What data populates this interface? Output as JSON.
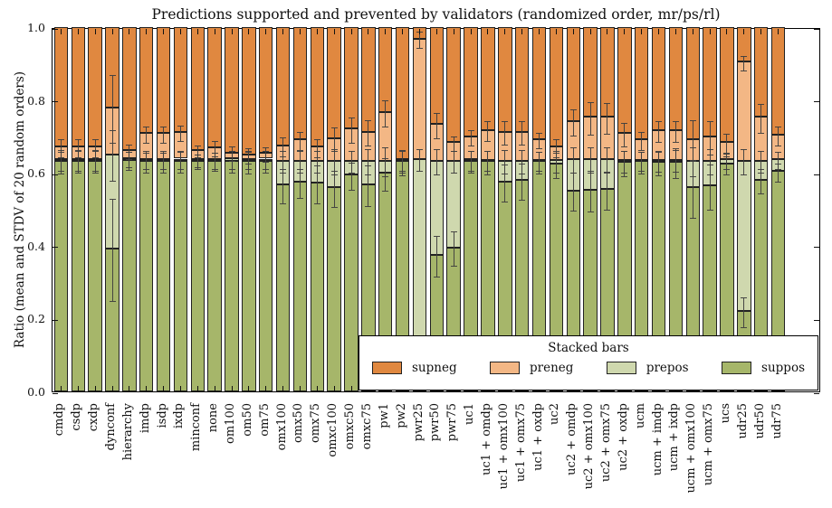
{
  "chart_data": {
    "type": "bar",
    "subtype": "stacked-vertical-with-errorbars",
    "title": "Predictions supported and prevented by validators (randomized order, mr/ps/rl)",
    "ylabel": "Ratio (mean and STDV of 20 random orders)",
    "xlabel": "",
    "ylim": [
      0.0,
      1.0
    ],
    "ytick_labels": [
      "0.0",
      "0.2",
      "0.4",
      "0.6",
      "0.8",
      "1.0"
    ],
    "grid": false,
    "legend_title": "Stacked bars",
    "legend_position": "lower right, inside plot",
    "stack_order_bottom_to_top": [
      "suppos",
      "prepos",
      "preneg",
      "supneg"
    ],
    "legend": [
      {
        "name": "supneg",
        "color": "#e08840"
      },
      {
        "name": "preneg",
        "color": "#f3b785"
      },
      {
        "name": "prepos",
        "color": "#cfd8ae"
      },
      {
        "name": "suppos",
        "color": "#a6b66a"
      }
    ],
    "colors": {
      "edge": "#222222",
      "errorbar": "#3f3f3f",
      "supneg": "#e08840",
      "preneg": "#f3b785",
      "prepos": "#cfd8ae",
      "suppos": "#a6b66a"
    },
    "categories": [
      "cmdp",
      "csdp",
      "cxdp",
      "dynconf",
      "hierarchy",
      "imdp",
      "isdp",
      "ixdp",
      "minconf",
      "none",
      "om100",
      "om50",
      "om75",
      "omx100",
      "omx50",
      "omx75",
      "omxc100",
      "omxc50",
      "omxc75",
      "pw1",
      "pw2",
      "pwr25",
      "pwr50",
      "pwr75",
      "uc1",
      "uc1 + omdp",
      "uc1 + omx100",
      "uc1 + omx75",
      "uc1 + oxdp",
      "uc2",
      "uc2 + omdp",
      "uc2 + omx100",
      "uc2 + omx75",
      "uc2 + oxdp",
      "ucm",
      "ucm + imdp",
      "ucm + ixdp",
      "ucm + omx100",
      "ucm + omx75",
      "ucs",
      "udr25",
      "udr50",
      "udr75"
    ],
    "series": {
      "suppos": [
        0.632,
        0.633,
        0.633,
        0.392,
        0.636,
        0.632,
        0.632,
        0.633,
        0.634,
        0.633,
        0.633,
        0.632,
        0.633,
        0.568,
        0.575,
        0.572,
        0.56,
        0.595,
        0.568,
        0.6,
        0.632,
        0.1,
        0.375,
        0.395,
        0.633,
        0.632,
        0.576,
        0.58,
        0.632,
        0.625,
        0.552,
        0.553,
        0.555,
        0.63,
        0.632,
        0.63,
        0.63,
        0.56,
        0.565,
        0.625,
        0.221,
        0.58,
        0.605
      ],
      "prepos": [
        0.006,
        0.005,
        0.005,
        0.259,
        0.004,
        0.006,
        0.006,
        0.006,
        0.003,
        0.004,
        0.007,
        0.006,
        0.006,
        0.066,
        0.059,
        0.062,
        0.074,
        0.039,
        0.066,
        0.034,
        0.002,
        0.538,
        0.259,
        0.239,
        0.004,
        0.004,
        0.058,
        0.054,
        0.004,
        0.01,
        0.086,
        0.085,
        0.083,
        0.005,
        0.004,
        0.005,
        0.006,
        0.074,
        0.069,
        0.012,
        0.413,
        0.054,
        0.033
      ],
      "preneg": [
        0.034,
        0.034,
        0.034,
        0.128,
        0.022,
        0.071,
        0.071,
        0.073,
        0.025,
        0.033,
        0.016,
        0.012,
        0.015,
        0.041,
        0.058,
        0.038,
        0.062,
        0.087,
        0.079,
        0.133,
        0.004,
        0.331,
        0.1,
        0.05,
        0.063,
        0.082,
        0.079,
        0.079,
        0.056,
        0.037,
        0.104,
        0.116,
        0.116,
        0.074,
        0.056,
        0.082,
        0.081,
        0.058,
        0.066,
        0.047,
        0.271,
        0.12,
        0.067
      ],
      "supneg": [
        0.328,
        0.328,
        0.328,
        0.221,
        0.338,
        0.291,
        0.291,
        0.288,
        0.338,
        0.33,
        0.344,
        0.35,
        0.346,
        0.325,
        0.308,
        0.328,
        0.304,
        0.279,
        0.287,
        0.233,
        0.362,
        0.031,
        0.266,
        0.316,
        0.3,
        0.282,
        0.287,
        0.287,
        0.308,
        0.328,
        0.258,
        0.246,
        0.246,
        0.291,
        0.308,
        0.283,
        0.283,
        0.308,
        0.3,
        0.316,
        0.095,
        0.246,
        0.295
      ]
    },
    "stddev_at_boundaries_suppos_prepos_preneg": [
      [
        0.03,
        0.028,
        0.025
      ],
      [
        0.03,
        0.028,
        0.025
      ],
      [
        0.03,
        0.028,
        0.025
      ],
      [
        0.14,
        0.07,
        0.092
      ],
      [
        0.025,
        0.022,
        0.02
      ],
      [
        0.028,
        0.025,
        0.022
      ],
      [
        0.028,
        0.025,
        0.022
      ],
      [
        0.028,
        0.025,
        0.022
      ],
      [
        0.02,
        0.018,
        0.016
      ],
      [
        0.025,
        0.022,
        0.02
      ],
      [
        0.03,
        0.025,
        0.02
      ],
      [
        0.03,
        0.025,
        0.02
      ],
      [
        0.03,
        0.025,
        0.02
      ],
      [
        0.047,
        0.03,
        0.025
      ],
      [
        0.04,
        0.03,
        0.025
      ],
      [
        0.052,
        0.03,
        0.025
      ],
      [
        0.05,
        0.035,
        0.033
      ],
      [
        0.037,
        0.03,
        0.035
      ],
      [
        0.055,
        0.035,
        0.035
      ],
      [
        0.045,
        0.04,
        0.035
      ],
      [
        0.035,
        0.03,
        0.028
      ],
      [
        0.03,
        0.03,
        0.022
      ],
      [
        0.055,
        0.035,
        0.035
      ],
      [
        0.047,
        0.03,
        0.02
      ],
      [
        0.03,
        0.028,
        0.022
      ],
      [
        0.032,
        0.028,
        0.028
      ],
      [
        0.05,
        0.032,
        0.033
      ],
      [
        0.05,
        0.032,
        0.033
      ],
      [
        0.03,
        0.026,
        0.022
      ],
      [
        0.035,
        0.03,
        0.025
      ],
      [
        0.053,
        0.035,
        0.037
      ],
      [
        0.055,
        0.035,
        0.045
      ],
      [
        0.052,
        0.035,
        0.042
      ],
      [
        0.035,
        0.03,
        0.032
      ],
      [
        0.03,
        0.026,
        0.025
      ],
      [
        0.032,
        0.028,
        0.028
      ],
      [
        0.04,
        0.03,
        0.028
      ],
      [
        0.08,
        0.04,
        0.055
      ],
      [
        0.062,
        0.035,
        0.045
      ],
      [
        0.025,
        0.022,
        0.028
      ],
      [
        0.04,
        0.035,
        0.02
      ],
      [
        0.033,
        0.03,
        0.04
      ],
      [
        0.025,
        0.024,
        0.027
      ]
    ]
  }
}
